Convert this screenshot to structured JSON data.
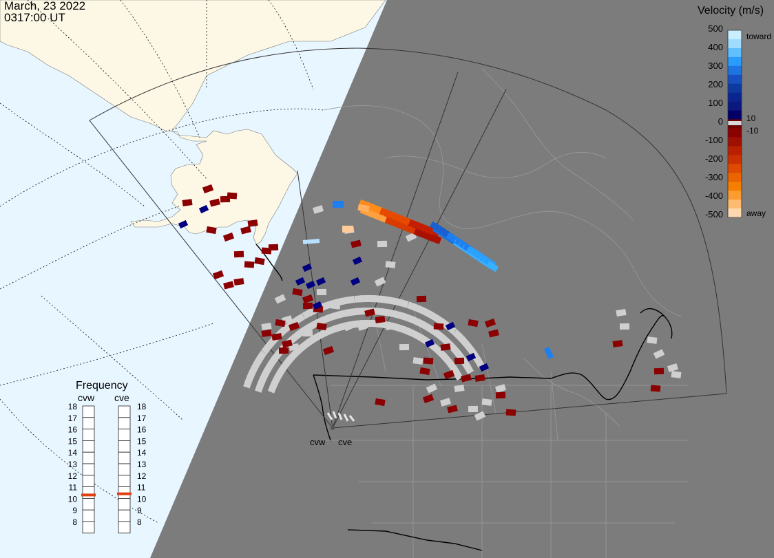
{
  "header": {
    "date": "March, 23 2022",
    "time": "0317:00 UT"
  },
  "colors": {
    "ocean": "#e8f6ff",
    "land": "#fdf8e6",
    "night": "#7c7c7c",
    "gray_scatter": "#cfcfcf",
    "dark_red": "#8b0000",
    "orange": "#ff7f00",
    "blue": "#1e90ff",
    "navy": "#000080"
  },
  "velocity_legend": {
    "title": "Velocity (m/s)",
    "ticks": [
      "500",
      "400",
      "300",
      "200",
      "100",
      "0",
      "-100",
      "-200",
      "-300",
      "-400",
      "-500"
    ],
    "toward_label": "toward",
    "away_label": "away",
    "threshold_pos": "10",
    "threshold_neg": "-10"
  },
  "frequency": {
    "title": "Frequency",
    "radars": [
      {
        "name": "cvw",
        "frequency_mhz": 10.8
      },
      {
        "name": "cve",
        "frequency_mhz": 10.9
      }
    ],
    "scale": [
      "18",
      "17",
      "16",
      "15",
      "14",
      "13",
      "12",
      "11",
      "10",
      "9",
      "8"
    ]
  },
  "radar_labels": {
    "cvw": "cvw",
    "cve": "cve"
  }
}
